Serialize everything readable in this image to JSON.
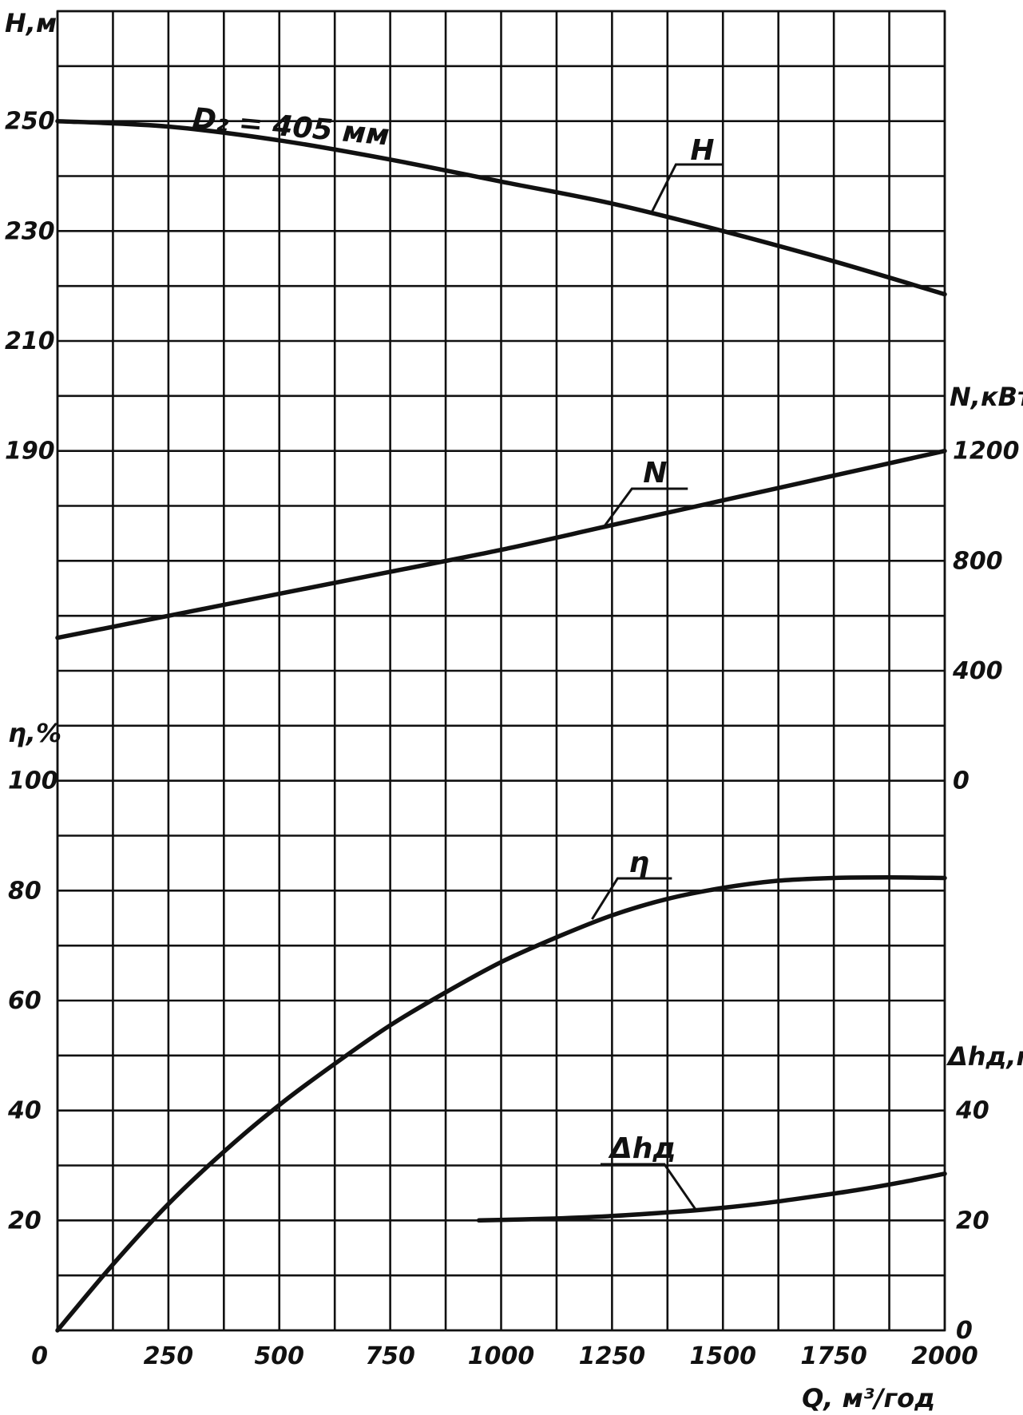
{
  "chart_data": {
    "type": "line",
    "xlabel": "Q, м³/год",
    "xlim": [
      0,
      2000
    ],
    "x_ticks": [
      "0",
      "250",
      "500",
      "750",
      "1000",
      "1250",
      "1500",
      "1750",
      "2000"
    ],
    "grid": true,
    "axes": {
      "H": {
        "label": "Н,м",
        "range": [
          170,
          270
        ],
        "ticks": [
          "250",
          "230",
          "210",
          "190"
        ],
        "side": "left"
      },
      "N": {
        "label": "N,кВт",
        "range": [
          0,
          1200
        ],
        "ticks": [
          "1200",
          "800",
          "400",
          "0"
        ],
        "side": "right"
      },
      "eta": {
        "label": "η,%",
        "range": [
          0,
          100
        ],
        "ticks": [
          "100",
          "80",
          "60",
          "40",
          "20"
        ],
        "side": "left"
      },
      "dh": {
        "label": "Δhд,м",
        "range": [
          0,
          40
        ],
        "ticks": [
          "40",
          "20",
          "0"
        ],
        "side": "right"
      }
    },
    "series": [
      {
        "name": "H",
        "axis": "H",
        "annotation": "D₂ = 405 мм",
        "x": [
          0,
          250,
          500,
          750,
          1000,
          1250,
          1500,
          1750,
          2000
        ],
        "y": [
          250,
          249,
          246.5,
          243,
          239,
          235,
          230,
          224.5,
          218.5
        ]
      },
      {
        "name": "N",
        "axis": "N",
        "x": [
          0,
          250,
          500,
          750,
          1000,
          1250,
          1500,
          1750,
          2000
        ],
        "y": [
          520,
          600,
          680,
          760,
          840,
          930,
          1020,
          1110,
          1200
        ]
      },
      {
        "name": "η",
        "axis": "eta",
        "x": [
          0,
          125,
          250,
          375,
          500,
          625,
          750,
          875,
          1000,
          1125,
          1250,
          1375,
          1500,
          1625,
          1750,
          1875,
          2000
        ],
        "y": [
          0,
          12,
          23,
          32.5,
          41,
          48.5,
          55.5,
          61.5,
          67,
          71.5,
          75.5,
          78.5,
          80.5,
          81.8,
          82.3,
          82.4,
          82.3
        ]
      },
      {
        "name": "Δhд",
        "axis": "dh",
        "x": [
          950,
          1100,
          1250,
          1400,
          1500,
          1600,
          1700,
          1800,
          1900,
          2000
        ],
        "y": [
          20,
          20.3,
          20.8,
          21.6,
          22.3,
          23.2,
          24.3,
          25.5,
          26.9,
          28.5
        ]
      }
    ]
  }
}
